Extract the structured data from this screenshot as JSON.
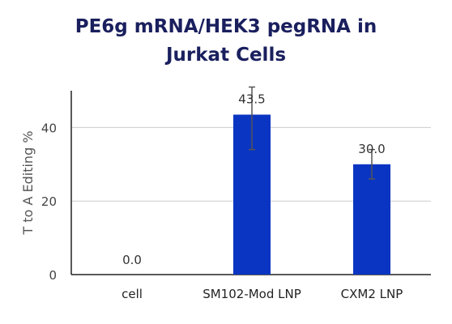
{
  "chart_data": {
    "type": "bar",
    "title_lines": [
      "PE6g mRNA/HEK3 pegRNA in",
      "Jurkat Cells"
    ],
    "xlabel": "",
    "ylabel": "T to A Editing %",
    "categories": [
      "cell",
      "SM102-Mod LNP",
      "CXM2 LNP"
    ],
    "values": [
      0.0,
      43.5,
      30.0
    ],
    "value_labels": [
      "0.0",
      "43.5",
      "30.0"
    ],
    "error_low": [
      0.0,
      34.0,
      26.0
    ],
    "error_high": [
      0.0,
      51.0,
      34.0
    ],
    "ylim": [
      0,
      50
    ],
    "yticks": [
      0,
      20,
      40
    ],
    "ytick_labels": [
      "0",
      "20",
      "40"
    ],
    "grid": true,
    "bar_color": "#0a35c2",
    "error_bar_color": "#555555",
    "gridline_color": "#cccccc"
  }
}
